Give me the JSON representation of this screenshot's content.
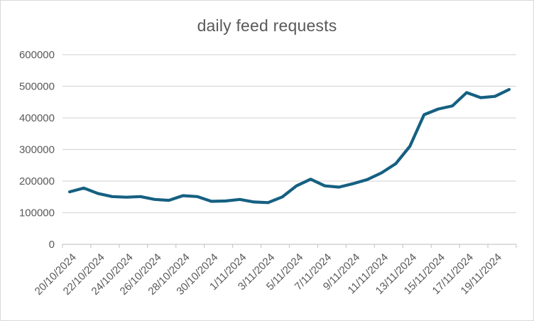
{
  "window": {
    "background": "#ffffff",
    "border_color": "#d9d9d9"
  },
  "chart_data": {
    "type": "line",
    "title": "daily feed requests",
    "x": [
      "20/10/2024",
      "21/10/2024",
      "22/10/2024",
      "23/10/2024",
      "24/10/2024",
      "25/10/2024",
      "26/10/2024",
      "27/10/2024",
      "28/10/2024",
      "29/10/2024",
      "30/10/2024",
      "31/10/2024",
      "1/11/2024",
      "2/11/2024",
      "3/11/2024",
      "4/11/2024",
      "5/11/2024",
      "6/11/2024",
      "7/11/2024",
      "8/11/2024",
      "9/11/2024",
      "10/11/2024",
      "11/11/2024",
      "12/11/2024",
      "13/11/2024",
      "14/11/2024",
      "15/11/2024",
      "16/11/2024",
      "17/11/2024",
      "18/11/2024",
      "19/11/2024",
      "20/11/2024"
    ],
    "series": [
      {
        "name": "daily feed requests",
        "values": [
          166000,
          178000,
          161000,
          151000,
          149000,
          151000,
          142000,
          139000,
          154000,
          151000,
          136000,
          137000,
          142000,
          134000,
          132000,
          150000,
          185000,
          206000,
          185000,
          181000,
          192000,
          205000,
          226000,
          255000,
          310000,
          410000,
          428000,
          438000,
          480000,
          464000,
          468000,
          490000
        ]
      }
    ],
    "x_tick_labels": [
      "20/10/2024",
      "22/10/2024",
      "24/10/2024",
      "26/10/2024",
      "28/10/2024",
      "30/10/2024",
      "1/11/2024",
      "3/11/2024",
      "5/11/2024",
      "7/11/2024",
      "9/11/2024",
      "11/11/2024",
      "13/11/2024",
      "15/11/2024",
      "17/11/2024",
      "19/11/2024"
    ],
    "y_ticks": [
      0,
      100000,
      200000,
      300000,
      400000,
      500000,
      600000
    ],
    "ylim": [
      0,
      600000
    ],
    "xlabel": "",
    "ylabel": "",
    "grid": true,
    "legend": false,
    "series_color": "#156082",
    "title_color": "#595959",
    "axis_label_color": "#595959",
    "gridline_color": "#d9d9d9",
    "axis_line_color": "#c9c9c9"
  }
}
